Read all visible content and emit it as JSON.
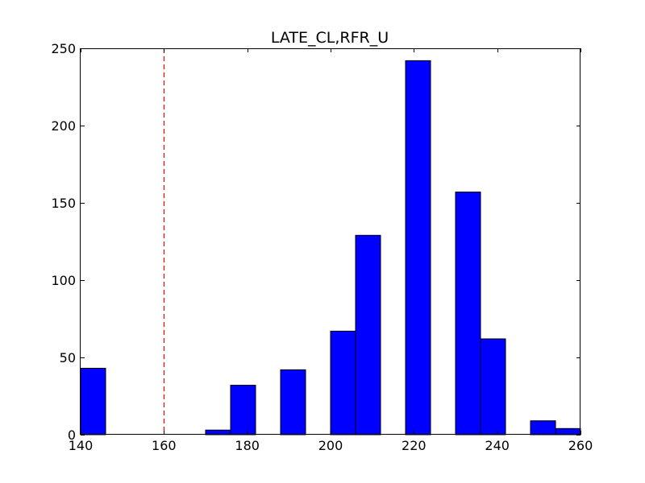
{
  "chart_data": {
    "type": "bar",
    "title": "LATE_CL,RFR_U",
    "xlabel": "",
    "ylabel": "",
    "xlim": [
      140,
      260
    ],
    "ylim": [
      0,
      250
    ],
    "x_ticks": [
      140,
      160,
      180,
      200,
      220,
      240,
      260
    ],
    "y_ticks": [
      0,
      50,
      100,
      150,
      200,
      250
    ],
    "grid": false,
    "bar_color": "#0000ff",
    "reference_line": {
      "x": 160,
      "color": "#ff0000",
      "style": "dashed"
    },
    "bins": [
      {
        "start": 140,
        "end": 146,
        "value": 43
      },
      {
        "start": 146,
        "end": 152,
        "value": 0
      },
      {
        "start": 152,
        "end": 158,
        "value": 0
      },
      {
        "start": 158,
        "end": 164,
        "value": 0
      },
      {
        "start": 164,
        "end": 170,
        "value": 0
      },
      {
        "start": 170,
        "end": 176,
        "value": 3
      },
      {
        "start": 176,
        "end": 182,
        "value": 32
      },
      {
        "start": 182,
        "end": 188,
        "value": 0
      },
      {
        "start": 188,
        "end": 194,
        "value": 42
      },
      {
        "start": 194,
        "end": 200,
        "value": 0
      },
      {
        "start": 200,
        "end": 206,
        "value": 67
      },
      {
        "start": 206,
        "end": 212,
        "value": 129
      },
      {
        "start": 212,
        "end": 218,
        "value": 0
      },
      {
        "start": 218,
        "end": 224,
        "value": 242
      },
      {
        "start": 224,
        "end": 230,
        "value": 0
      },
      {
        "start": 230,
        "end": 236,
        "value": 157
      },
      {
        "start": 236,
        "end": 242,
        "value": 62
      },
      {
        "start": 242,
        "end": 248,
        "value": 0
      },
      {
        "start": 248,
        "end": 254,
        "value": 9
      },
      {
        "start": 254,
        "end": 260,
        "value": 4
      }
    ]
  }
}
